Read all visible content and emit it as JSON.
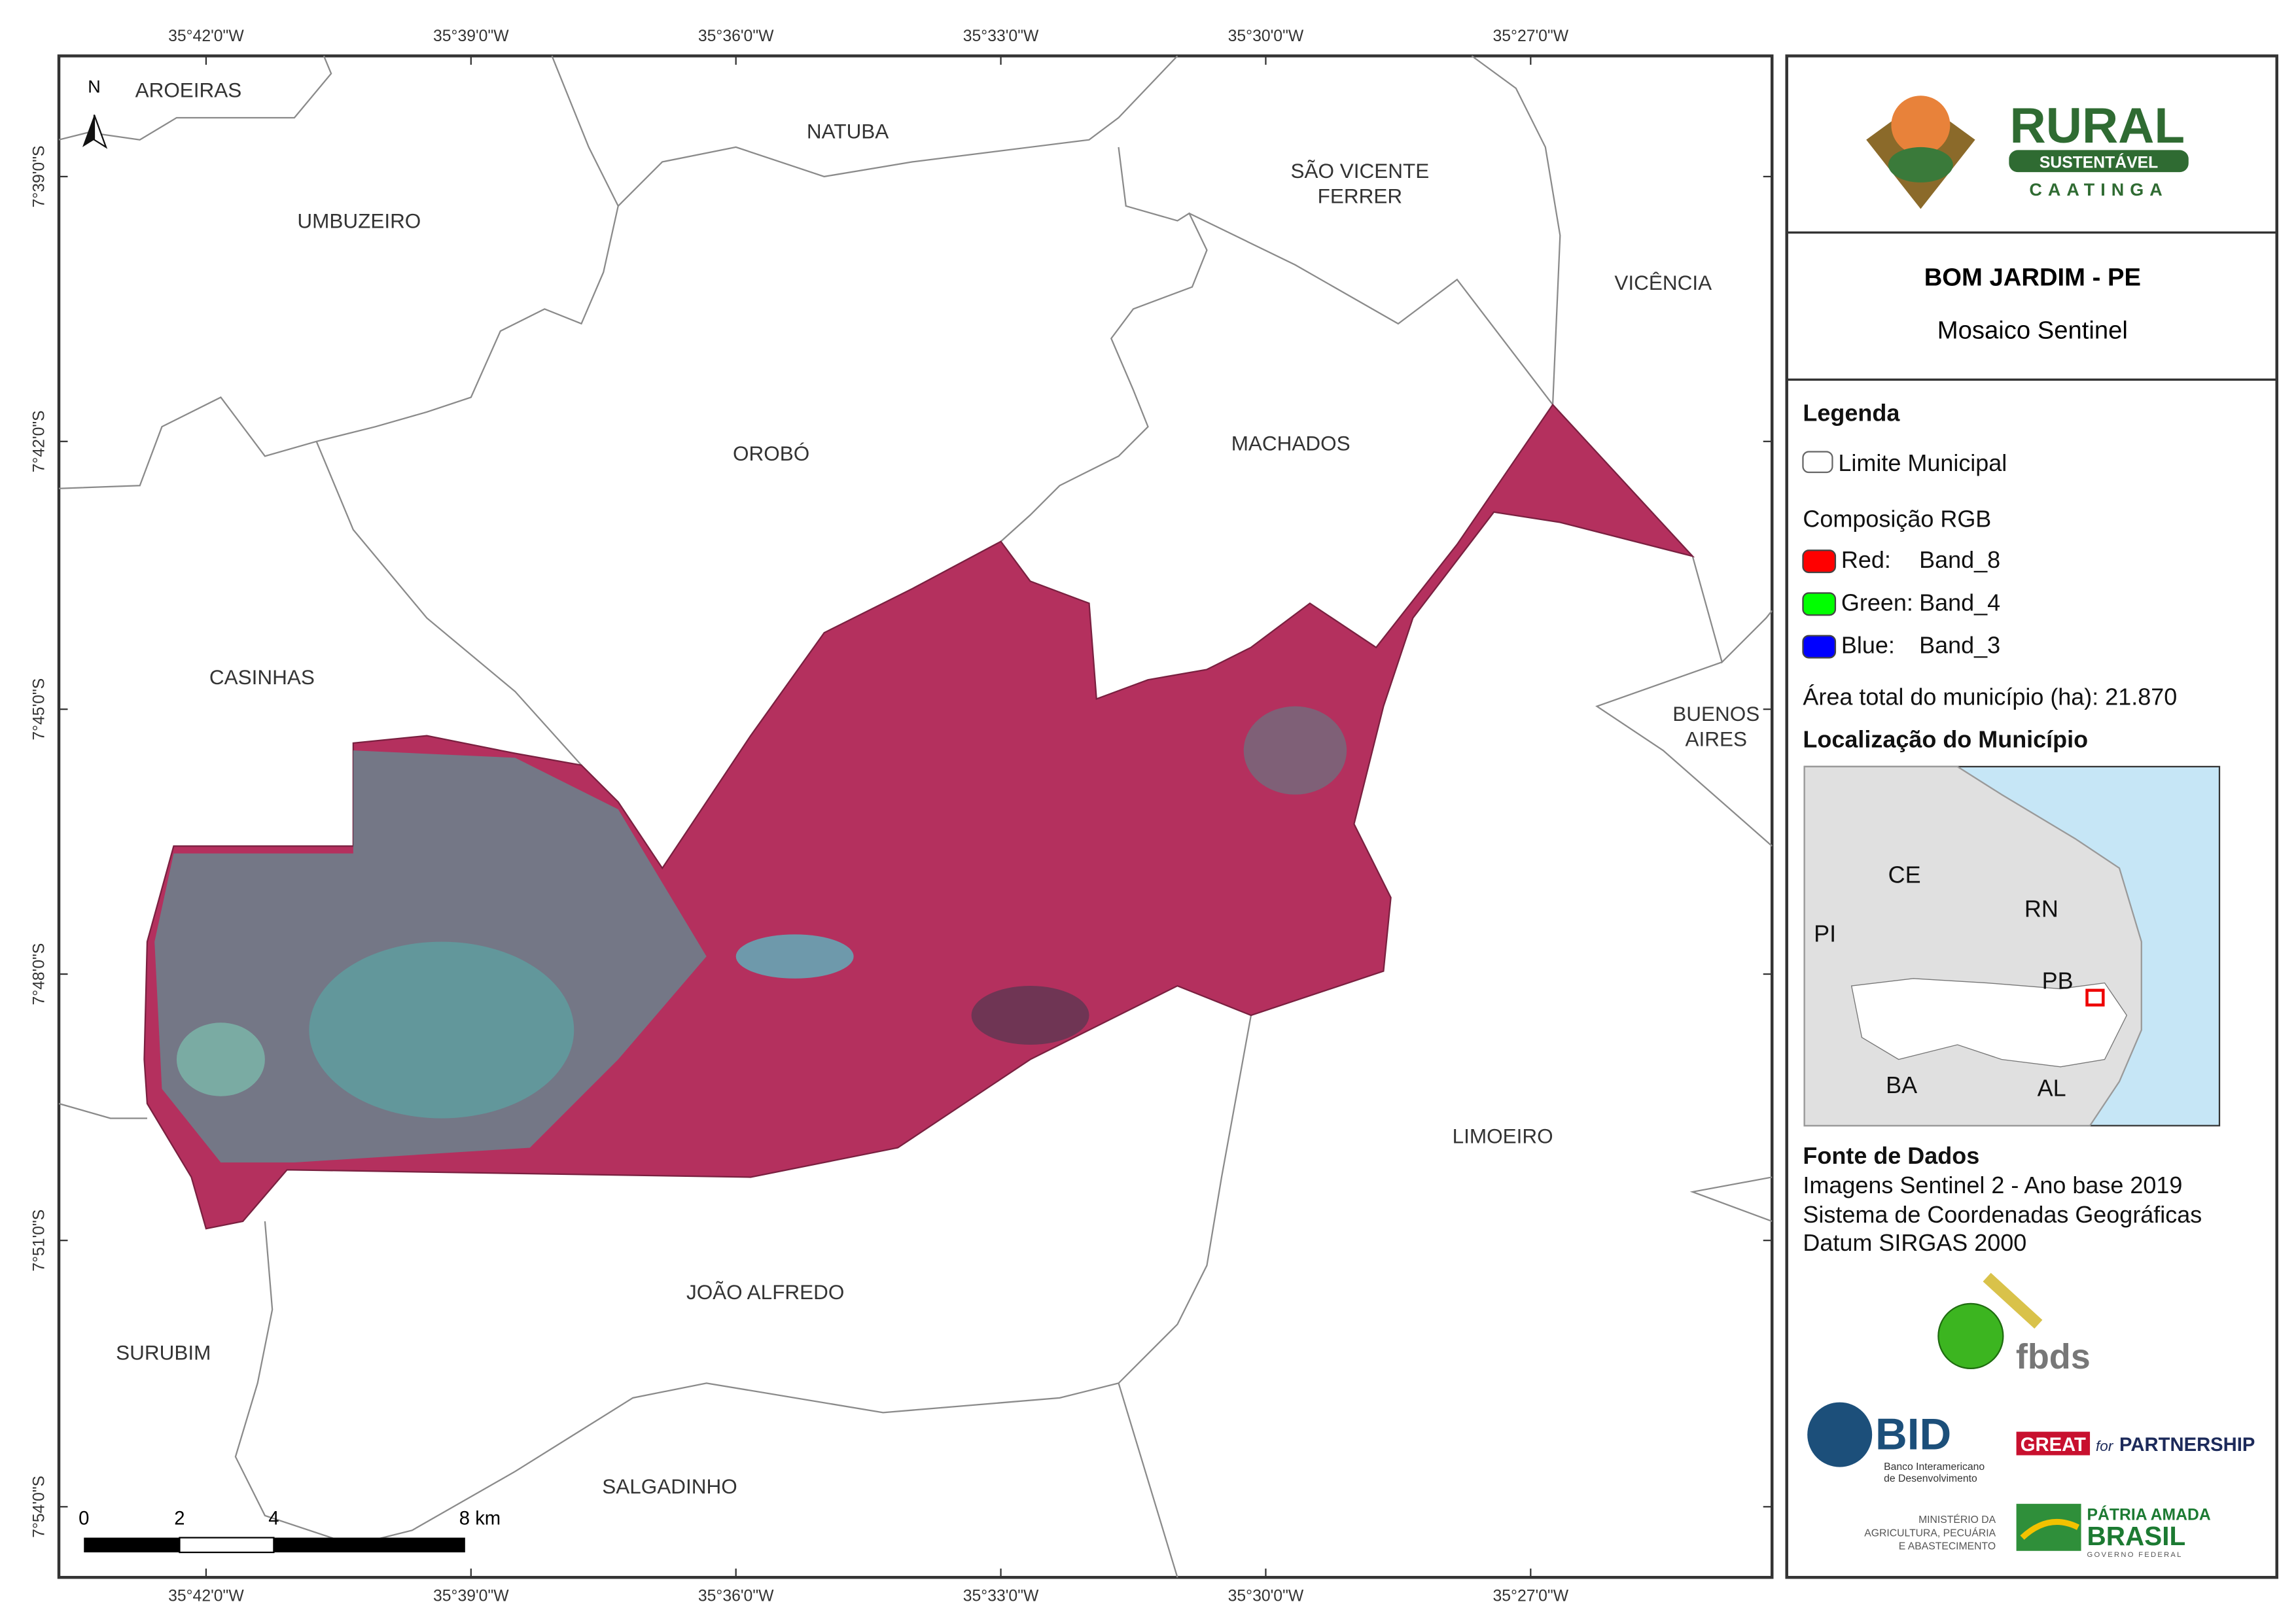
{
  "map": {
    "longitude_labels": [
      "35°42'0\"W",
      "35°39'0\"W",
      "35°36'0\"W",
      "35°33'0\"W",
      "35°30'0\"W",
      "35°27'0\"W"
    ],
    "latitude_labels": [
      "7°39'0\"S",
      "7°42'0\"S",
      "7°45'0\"S",
      "7°48'0\"S",
      "7°51'0\"S",
      "7°54'0\"S"
    ],
    "north_arrow": "N",
    "municipalities": [
      [
        "AROEIRAS"
      ],
      [
        "NATUBA"
      ],
      [
        "UMBUZEIRO"
      ],
      [
        "SÃO VICENTE",
        "FERRER"
      ],
      [
        "VICÊNCIA"
      ],
      [
        "OROBÓ"
      ],
      [
        "MACHADOS"
      ],
      [
        "CASINHAS"
      ],
      [
        "BUENOS",
        "AIRES"
      ],
      [
        "LIMOEIRO"
      ],
      [
        "JOÃO ALFREDO"
      ],
      [
        "SURUBIM"
      ],
      [
        "SALGADINHO"
      ]
    ],
    "scale_bar": [
      "0",
      "2",
      "4",
      "8 km"
    ]
  },
  "panel": {
    "logo": {
      "line1": "RURAL",
      "line2": "SUSTENTÁVEL",
      "line3": "CAATINGA"
    },
    "title": "BOM JARDIM - PE",
    "subtitle": "Mosaico Sentinel",
    "legend": {
      "heading": "Legenda",
      "boundary": "Limite Municipal",
      "rgb_heading": "Composição RGB",
      "bands": [
        {
          "channel": "Red:",
          "band": "Band_8"
        },
        {
          "channel": "Green:",
          "band": "Band_4"
        },
        {
          "channel": "Blue:",
          "band": "Band_3"
        }
      ],
      "area": "Área total do município (ha): 21.870"
    },
    "location": {
      "heading": "Localização do Município",
      "states": [
        "CE",
        "RN",
        "PI",
        "PB",
        "BA",
        "AL"
      ]
    },
    "sources": {
      "heading": "Fonte de Dados",
      "lines": [
        "Imagens Sentinel 2 - Ano base 2019",
        "Sistema de Coordenadas Geográficas",
        "Datum SIRGAS 2000"
      ]
    },
    "partners": {
      "fbds": "fbds",
      "bid": "BID",
      "bid_name": [
        "Banco Interamericano",
        "de Desenvolvimento"
      ],
      "great": "GREAT",
      "for": "for",
      "partnership": "PARTNERSHIP",
      "ministry": [
        "MINISTÉRIO DA",
        "AGRICULTURA, PECUÁRIA",
        "E ABASTECIMENTO"
      ],
      "patria": "PÁTRIA AMADA",
      "brasil": "BRASIL",
      "governo": "GOVERNO FEDERAL"
    }
  }
}
